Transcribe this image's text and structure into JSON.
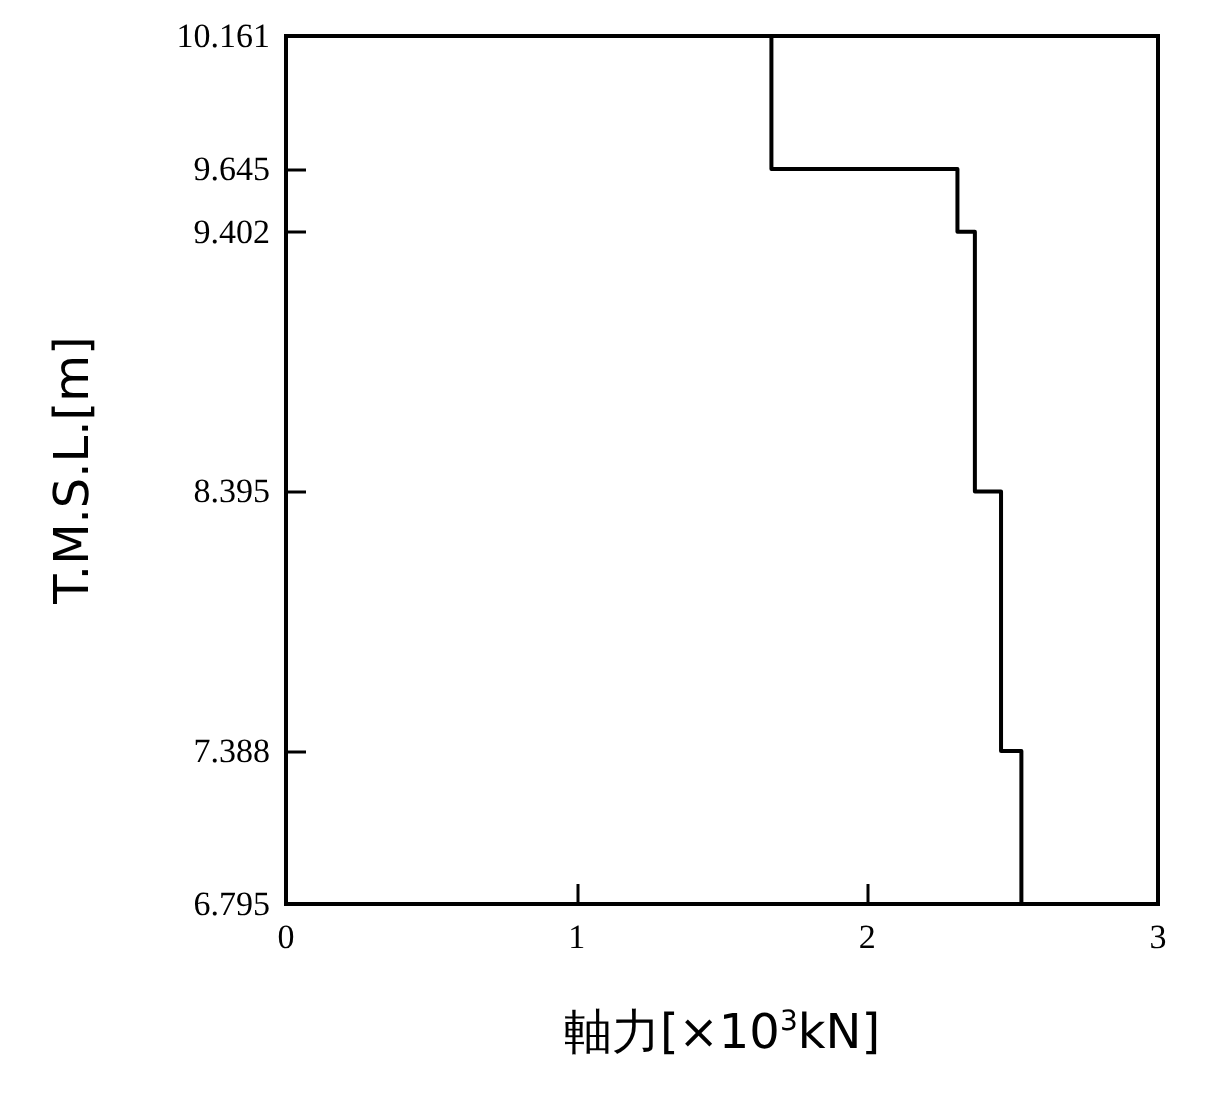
{
  "chart_data": {
    "type": "line",
    "xlabel": "軸力[×10$^{3}$kN]",
    "ylabel": "T.M.S.L.[m]",
    "xlim": [
      0,
      3
    ],
    "xticks": [
      0,
      1,
      2,
      3
    ],
    "ylim": [
      6.795,
      10.161
    ],
    "yticks": [
      6.795,
      7.388,
      8.395,
      9.402,
      9.645,
      10.161
    ],
    "x": [
      1.67,
      1.67,
      2.31,
      2.31,
      2.37,
      2.37,
      2.46,
      2.46,
      2.53,
      2.53
    ],
    "series": [
      {
        "color": "#000000",
        "values": [
          10.161,
          9.645,
          9.645,
          9.402,
          9.402,
          8.395,
          8.395,
          7.388,
          7.388,
          6.795
        ]
      }
    ],
    "marker": "none",
    "line_style": "solid"
  }
}
